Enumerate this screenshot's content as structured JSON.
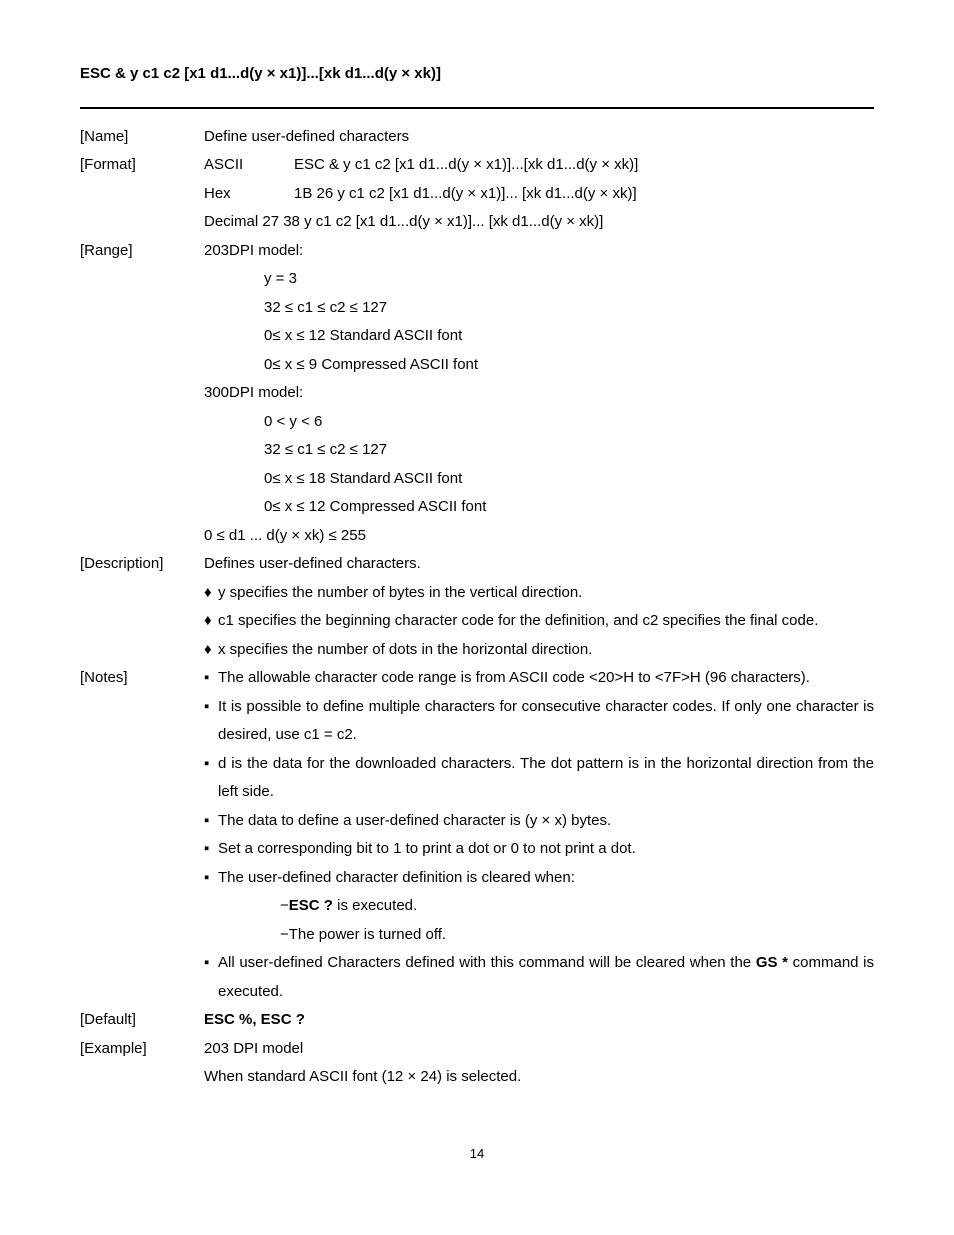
{
  "title": "ESC & y c1 c2 [x1 d1...d(y × x1)]...[xk d1...d(y × xk)]",
  "labels": {
    "name": "[Name]",
    "format": "[Format]",
    "range": "[Range]",
    "description": "[Description]",
    "notes": "[Notes]",
    "default": "[Default]",
    "example": "[Example]"
  },
  "name_value": "Define user-defined characters",
  "format": {
    "ascii_label": "ASCII",
    "ascii_value": "ESC & y c1 c2 [x1 d1...d(y × x1)]...[xk d1...d(y × xk)]",
    "hex_label": "Hex",
    "hex_value": "1B 26 y c1 c2 [x1 d1...d(y × x1)]... [xk d1...d(y × xk)]",
    "dec_label": "Decimal",
    "dec_value": "27 38 y c1 c2 [x1 d1...d(y × x1)]... [xk d1...d(y × xk)]"
  },
  "range": {
    "m203_header": "203DPI model:",
    "m203_l1": "y = 3",
    "m203_l2": "32 ≤ c1 ≤ c2 ≤ 127",
    "m203_l3": "0≤ x ≤ 12  Standard ASCII font",
    "m203_l4": "0≤ x ≤ 9   Compressed ASCII font",
    "m300_header": "300DPI model:",
    "m300_l1": "0 < y < 6",
    "m300_l2": "32 ≤ c1 ≤ c2 ≤ 127",
    "m300_l3": "0≤ x ≤ 18  Standard ASCII font",
    "m300_l4": "0≤ x ≤ 12  Compressed ASCII font",
    "last": "0 ≤ d1 ... d(y × xk) ≤ 255"
  },
  "description": {
    "intro": "Defines user-defined characters.",
    "d1": "y specifies the number of bytes in the vertical direction.",
    "d2": "c1 specifies the beginning character code for the definition, and c2 specifies the final code.",
    "d3": "x specifies the number of dots in the horizontal direction."
  },
  "notes": {
    "n1": "The allowable character code range is from ASCII code <20>H to <7F>H (96 characters).",
    "n2": "It is possible to define multiple characters for consecutive character codes. If only one character is desired, use c1 = c2.",
    "n3": "d is the data for the downloaded characters. The dot pattern is in the horizontal direction from the left side.",
    "n4": "The data to define a user-defined character is (y × x) bytes.",
    "n5": "Set a corresponding bit to 1 to print a dot or 0 to not print a dot.",
    "n6": "The user-defined character definition is cleared when:",
    "n6a_pre": "−",
    "n6a_bold": "ESC ?",
    "n6a_post": " is executed.",
    "n6b": "−The power is turned off.",
    "n7_pre": "All user-defined Characters defined with this command will be cleared when the ",
    "n7_bold": "GS *",
    "n7_post": " command is executed."
  },
  "default_bold": "ESC %, ESC ?",
  "example": {
    "l1": "203 DPI model",
    "l2": "When standard ASCII font (12 × 24) is selected."
  },
  "bullets": {
    "diamond": "♦",
    "square": "▪"
  },
  "page_number": "14"
}
